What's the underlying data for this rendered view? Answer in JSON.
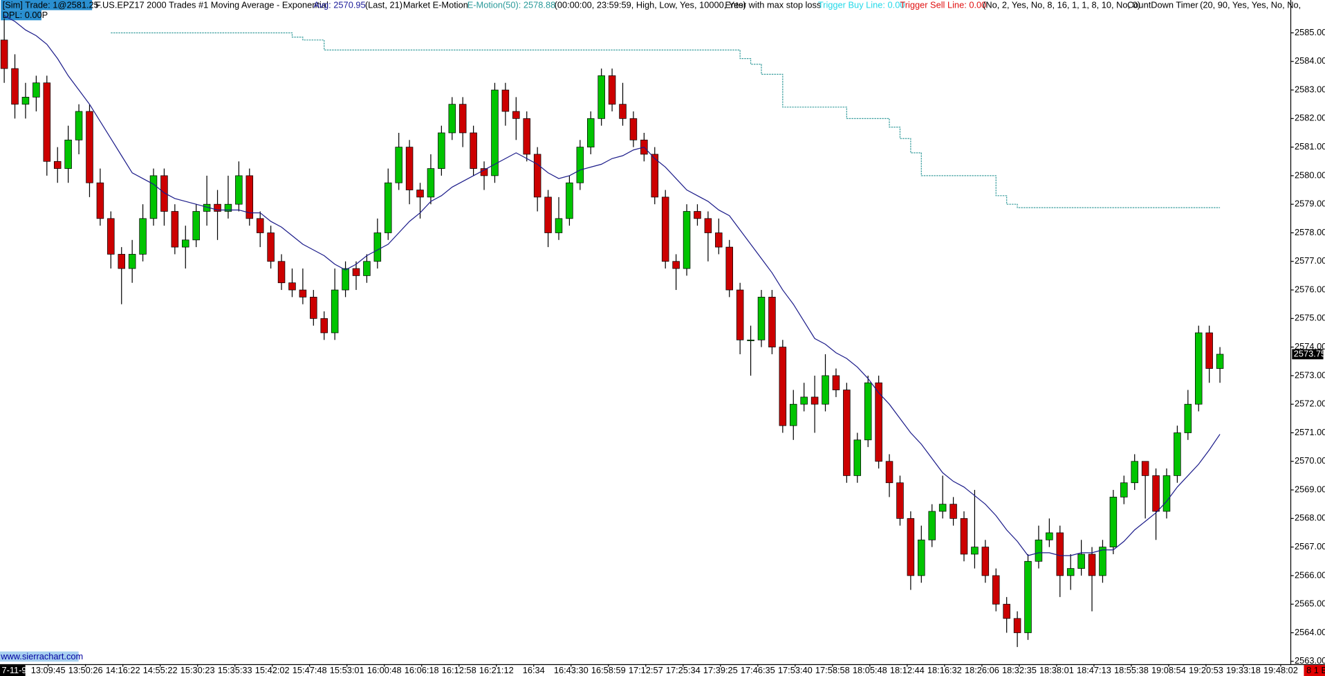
{
  "chart_data": {
    "type": "candlestick",
    "header": [
      {
        "text": "[Sim]  Trade: 1@2581.25",
        "color": "#000000"
      },
      {
        "text": "F.US.EPZ17  2000 Trades  #1  Moving Average - Exponential",
        "color": "#000000"
      },
      {
        "text": "Avg: 2570.95",
        "color": "#1c1c9a"
      },
      {
        "text": "(Last, 21)",
        "color": "#000000"
      },
      {
        "text": "Market E-Motion",
        "color": "#000000"
      },
      {
        "text": "E-Motion(50): 2578.88",
        "color": "#2a9a9a"
      },
      {
        "text": "(00:00:00, 23:59:59, High, Low, Yes, 10000, Yes)",
        "color": "#000000"
      },
      {
        "text": "Enter with max stop loss",
        "color": "#000000"
      },
      {
        "text": "Trigger Buy Line: 0.00",
        "color": "#22d8e8"
      },
      {
        "text": "Trigger Sell Line: 0.00",
        "color": "#e01010"
      },
      {
        "text": "(No, 2, Yes, No, 8, 16, 1, 1, 8, 10, No, 0)",
        "color": "#000000"
      },
      {
        "text": "CountDown Timer",
        "color": "#000000"
      },
      {
        "text": "(20, 90, Yes, Yes, No, No,",
        "color": "#000000"
      }
    ],
    "header2": "DPL: 0.00P",
    "watermark": "www.sierrachart.com",
    "date_label": "7-11-9",
    "corner_label": "8 1 E",
    "time_labels": [
      "13:09:45",
      "13:50:26",
      "14:16:22",
      "14:55:22",
      "15:30:23",
      "15:35:33",
      "15:42:02",
      "15:47:48",
      "15:53:01",
      "16:00:48",
      "16:06:18",
      "16:12:58",
      "16:21:12",
      "16:34",
      "16:43:30",
      "16:58:59",
      "17:12:57",
      "17:25:34",
      "17:39:25",
      "17:46:35",
      "17:53:40",
      "17:58:58",
      "18:05:48",
      "18:12:44",
      "18:16:32",
      "18:26:06",
      "18:32:35",
      "18:38:01",
      "18:47:13",
      "18:55:38",
      "19:08:54",
      "19:20:53",
      "19:33:18",
      "19:48:02"
    ],
    "open": [
      2584.75,
      2583.75,
      2582.5,
      2582.75,
      2583.25,
      2580.5,
      2580.25,
      2581.25,
      2582.25,
      2579.75,
      2578.5,
      2577.25,
      2576.75,
      2577.25,
      2578.5,
      2580.0,
      2578.75,
      2577.5,
      2577.75,
      2578.75,
      2579.0,
      2578.75,
      2579.0,
      2580.0,
      2578.5,
      2578.0,
      2577.0,
      2576.25,
      2576.0,
      2575.75,
      2575.0,
      2574.5,
      2576.0,
      2576.75,
      2576.5,
      2577.0,
      2578.0,
      2579.75,
      2581.0,
      2579.5,
      2579.25,
      2580.25,
      2581.5,
      2582.5,
      2581.5,
      2580.25,
      2580.0,
      2583.0,
      2582.25,
      2582.0,
      2580.75,
      2579.25,
      2578.0,
      2578.5,
      2579.75,
      2581.0,
      2582.0,
      2583.5,
      2582.5,
      2582.0,
      2581.25,
      2580.75,
      2579.25,
      2577.0,
      2576.75,
      2578.75,
      2578.5,
      2578.0,
      2577.5,
      2576.0,
      2574.25,
      2574.25,
      2575.75,
      2574.0,
      2571.25,
      2572.0,
      2572.25,
      2572.0,
      2573.0,
      2572.5,
      2569.5,
      2570.75,
      2572.75,
      2570.0,
      2569.25,
      2568.0,
      2566.0,
      2567.25,
      2568.25,
      2568.5,
      2568.0,
      2566.75,
      2567.0,
      2566.0,
      2565.0,
      2564.5,
      2564.0,
      2566.5,
      2567.25,
      2567.5,
      2566.0,
      2566.25,
      2566.75,
      2566.0,
      2567.0,
      2568.75,
      2569.25,
      2570.0,
      2569.5,
      2568.25,
      2569.5,
      2571.0,
      2572.0,
      2574.5,
      2573.25
    ],
    "high": [
      2585.5,
      2584.25,
      2583.25,
      2583.5,
      2583.5,
      2581.0,
      2581.75,
      2582.5,
      2582.5,
      2580.25,
      2578.75,
      2577.5,
      2577.75,
      2579.0,
      2580.25,
      2580.25,
      2579.0,
      2578.25,
      2579.0,
      2580.0,
      2579.5,
      2580.0,
      2580.5,
      2580.25,
      2578.75,
      2578.25,
      2577.25,
      2576.75,
      2576.75,
      2576.0,
      2575.25,
      2576.75,
      2577.0,
      2577.0,
      2577.25,
      2578.5,
      2580.25,
      2581.5,
      2581.25,
      2579.75,
      2580.75,
      2581.75,
      2582.75,
      2582.75,
      2581.75,
      2580.5,
      2583.25,
      2583.25,
      2582.75,
      2582.25,
      2581.0,
      2579.5,
      2579.25,
      2580.0,
      2581.25,
      2582.25,
      2583.75,
      2583.75,
      2583.25,
      2582.25,
      2581.5,
      2581.0,
      2579.5,
      2577.25,
      2579.0,
      2579.0,
      2578.75,
      2578.5,
      2577.75,
      2576.25,
      2574.75,
      2576.0,
      2576.0,
      2574.25,
      2572.5,
      2572.75,
      2573.0,
      2573.75,
      2573.25,
      2572.75,
      2571.0,
      2573.0,
      2573.0,
      2570.25,
      2569.5,
      2568.25,
      2567.75,
      2568.5,
      2569.5,
      2568.75,
      2568.25,
      2569.0,
      2567.25,
      2566.25,
      2565.25,
      2564.75,
      2566.75,
      2567.75,
      2568.0,
      2567.75,
      2566.75,
      2567.25,
      2567.0,
      2567.25,
      2569.0,
      2569.5,
      2570.25,
      2570.0,
      2569.75,
      2569.75,
      2571.25,
      2572.5,
      2574.75,
      2574.75,
      2574.0
    ],
    "low": [
      2583.25,
      2582.0,
      2582.0,
      2582.25,
      2580.0,
      2579.75,
      2579.75,
      2580.75,
      2579.25,
      2578.25,
      2576.75,
      2575.5,
      2576.25,
      2577.0,
      2578.25,
      2578.25,
      2577.25,
      2576.75,
      2577.5,
      2578.25,
      2577.75,
      2578.5,
      2578.75,
      2578.25,
      2577.5,
      2576.75,
      2576.0,
      2575.75,
      2575.5,
      2574.75,
      2574.25,
      2574.25,
      2575.75,
      2576.0,
      2576.25,
      2576.75,
      2577.75,
      2579.5,
      2579.0,
      2578.5,
      2579.0,
      2580.0,
      2581.25,
      2581.0,
      2580.0,
      2579.5,
      2579.75,
      2581.75,
      2581.25,
      2580.5,
      2578.75,
      2577.5,
      2577.75,
      2578.25,
      2579.5,
      2580.75,
      2581.75,
      2582.25,
      2581.75,
      2581.0,
      2580.5,
      2579.0,
      2576.75,
      2576.0,
      2576.5,
      2578.25,
      2577.0,
      2577.25,
      2575.75,
      2573.75,
      2573.0,
      2574.0,
      2573.75,
      2571.0,
      2570.75,
      2571.75,
      2571.0,
      2571.75,
      2572.25,
      2569.25,
      2569.25,
      2570.5,
      2569.75,
      2568.75,
      2567.75,
      2565.5,
      2565.75,
      2567.0,
      2568.0,
      2567.75,
      2566.5,
      2566.25,
      2565.75,
      2564.75,
      2564.0,
      2563.5,
      2563.75,
      2566.25,
      2567.0,
      2565.25,
      2565.5,
      2566.0,
      2564.75,
      2565.75,
      2566.75,
      2568.5,
      2569.0,
      2568.0,
      2567.25,
      2568.0,
      2569.25,
      2570.75,
      2571.75,
      2572.75,
      2572.75
    ],
    "close": [
      2583.75,
      2582.5,
      2582.75,
      2583.25,
      2580.5,
      2580.25,
      2581.25,
      2582.25,
      2579.75,
      2578.5,
      2577.25,
      2576.75,
      2577.25,
      2578.5,
      2580.0,
      2578.75,
      2577.5,
      2577.75,
      2578.75,
      2579.0,
      2578.75,
      2579.0,
      2580.0,
      2578.5,
      2578.0,
      2577.0,
      2576.25,
      2576.0,
      2575.75,
      2575.0,
      2574.5,
      2576.0,
      2576.75,
      2576.5,
      2577.0,
      2578.0,
      2579.75,
      2581.0,
      2579.5,
      2579.25,
      2580.25,
      2581.5,
      2582.5,
      2581.5,
      2580.25,
      2580.0,
      2583.0,
      2582.25,
      2582.0,
      2580.75,
      2579.25,
      2578.0,
      2578.5,
      2579.75,
      2581.0,
      2582.0,
      2583.5,
      2582.5,
      2582.0,
      2581.25,
      2580.75,
      2579.25,
      2577.0,
      2576.75,
      2578.75,
      2578.5,
      2578.0,
      2577.5,
      2576.0,
      2574.25,
      2574.25,
      2575.75,
      2574.0,
      2571.25,
      2572.0,
      2572.25,
      2572.0,
      2573.0,
      2572.5,
      2569.5,
      2570.75,
      2572.75,
      2570.0,
      2569.25,
      2568.0,
      2566.0,
      2567.25,
      2568.25,
      2568.5,
      2568.0,
      2566.75,
      2567.0,
      2566.0,
      2565.0,
      2564.5,
      2564.0,
      2566.5,
      2567.25,
      2567.5,
      2566.0,
      2566.25,
      2566.75,
      2566.0,
      2567.0,
      2568.75,
      2569.25,
      2570.0,
      2569.5,
      2568.25,
      2569.5,
      2571.0,
      2572.0,
      2574.5,
      2573.25,
      2573.75
    ],
    "up_color": "#00c400",
    "down_color": "#cc0000",
    "series": [
      {
        "color": "#1c1c8a",
        "style": "line",
        "values": [
          2585.6,
          2585.4,
          2585.1,
          2584.9,
          2584.6,
          2584.1,
          2583.5,
          2583.0,
          2582.5,
          2581.9,
          2581.3,
          2580.7,
          2580.1,
          2579.9,
          2579.7,
          2579.4,
          2579.2,
          2579.1,
          2579.0,
          2578.9,
          2578.8,
          2578.8,
          2578.8,
          2578.7,
          2578.7,
          2578.4,
          2578.2,
          2577.9,
          2577.6,
          2577.4,
          2577.2,
          2576.9,
          2576.7,
          2576.9,
          2577.2,
          2577.4,
          2577.6,
          2578.0,
          2578.4,
          2578.7,
          2579.1,
          2579.3,
          2579.6,
          2579.8,
          2580.0,
          2580.2,
          2580.4,
          2580.6,
          2580.8,
          2580.6,
          2580.4,
          2580.1,
          2579.9,
          2580.0,
          2580.2,
          2580.3,
          2580.4,
          2580.6,
          2580.7,
          2580.9,
          2581.0,
          2580.6,
          2580.3,
          2579.9,
          2579.5,
          2579.3,
          2579.1,
          2578.8,
          2578.6,
          2578.1,
          2577.6,
          2577.1,
          2576.6,
          2576.0,
          2575.5,
          2574.9,
          2574.3,
          2574.1,
          2573.8,
          2573.6,
          2573.3,
          2572.9,
          2572.4,
          2572.0,
          2571.5,
          2571.0,
          2570.6,
          2570.1,
          2569.6,
          2569.3,
          2569.1,
          2568.8,
          2568.5,
          2568.1,
          2567.6,
          2567.2,
          2566.7,
          2566.8,
          2566.8,
          2566.7,
          2566.7,
          2566.8,
          2566.8,
          2566.9,
          2566.9,
          2567.2,
          2567.6,
          2567.9,
          2568.2,
          2568.6,
          2569.1,
          2569.5,
          2569.9,
          2570.4,
          2570.95
        ]
      },
      {
        "color": "#3a9e9e",
        "style": "step",
        "values": [
          null,
          null,
          null,
          null,
          null,
          null,
          null,
          null,
          null,
          null,
          2585.0,
          2585.0,
          2585.0,
          2585.0,
          2585.0,
          2585.0,
          2585.0,
          2585.0,
          2585.0,
          2585.0,
          2585.0,
          2585.0,
          2585.0,
          2585.0,
          2585.0,
          2585.0,
          2585.0,
          2584.85,
          2584.75,
          2584.75,
          2584.4,
          2584.4,
          2584.4,
          2584.4,
          2584.4,
          2584.4,
          2584.4,
          2584.4,
          2584.4,
          2584.4,
          2584.4,
          2584.4,
          2584.4,
          2584.4,
          2584.4,
          2584.4,
          2584.4,
          2584.4,
          2584.4,
          2584.4,
          2584.4,
          2584.4,
          2584.4,
          2584.4,
          2584.4,
          2584.4,
          2584.4,
          2584.4,
          2584.4,
          2584.4,
          2584.4,
          2584.4,
          2584.4,
          2584.4,
          2584.4,
          2584.4,
          2584.4,
          2584.4,
          2584.4,
          2584.1,
          2583.9,
          2583.55,
          2583.55,
          2582.4,
          2582.4,
          2582.4,
          2582.4,
          2582.4,
          2582.4,
          2582.0,
          2582.0,
          2582.0,
          2582.0,
          2581.7,
          2581.3,
          2580.8,
          2580.0,
          2580.0,
          2580.0,
          2580.0,
          2580.0,
          2580.0,
          2580.0,
          2579.3,
          2579.0,
          2578.88,
          2578.88,
          2578.88,
          2578.88,
          2578.88,
          2578.88,
          2578.88,
          2578.88,
          2578.88,
          2578.88,
          2578.88,
          2578.88,
          2578.88,
          2578.88,
          2578.88,
          2578.88,
          2578.88,
          2578.88,
          2578.88,
          2578.88
        ]
      }
    ],
    "ylim": [
      2562.9,
      2586.15
    ],
    "yticks": [
      {
        "value": 2563,
        "label": "2563.00"
      },
      {
        "value": 2564,
        "label": "2564.00"
      },
      {
        "value": 2565,
        "label": "2565.00"
      },
      {
        "value": 2566,
        "label": "2566.00"
      },
      {
        "value": 2567,
        "label": "2567.00"
      },
      {
        "value": 2568,
        "label": "2568.00"
      },
      {
        "value": 2569,
        "label": "2569.00"
      },
      {
        "value": 2570,
        "label": "2570.00"
      },
      {
        "value": 2571,
        "label": "2571.00"
      },
      {
        "value": 2572,
        "label": "2572.00"
      },
      {
        "value": 2573,
        "label": "2573.00"
      },
      {
        "value": 2574,
        "label": "2574.00"
      },
      {
        "value": 2575,
        "label": "2575.00"
      },
      {
        "value": 2576,
        "label": "2576.00"
      },
      {
        "value": 2577,
        "label": "2577.00"
      },
      {
        "value": 2578,
        "label": "2578.00"
      },
      {
        "value": 2579,
        "label": "2579.00"
      },
      {
        "value": 2580,
        "label": "2580.00"
      },
      {
        "value": 2581,
        "label": "2581.00"
      },
      {
        "value": 2582,
        "label": "2582.00"
      },
      {
        "value": 2583,
        "label": "2583.00"
      },
      {
        "value": 2584,
        "label": "2584.00"
      },
      {
        "value": 2585,
        "label": "2585.00"
      }
    ]
  }
}
